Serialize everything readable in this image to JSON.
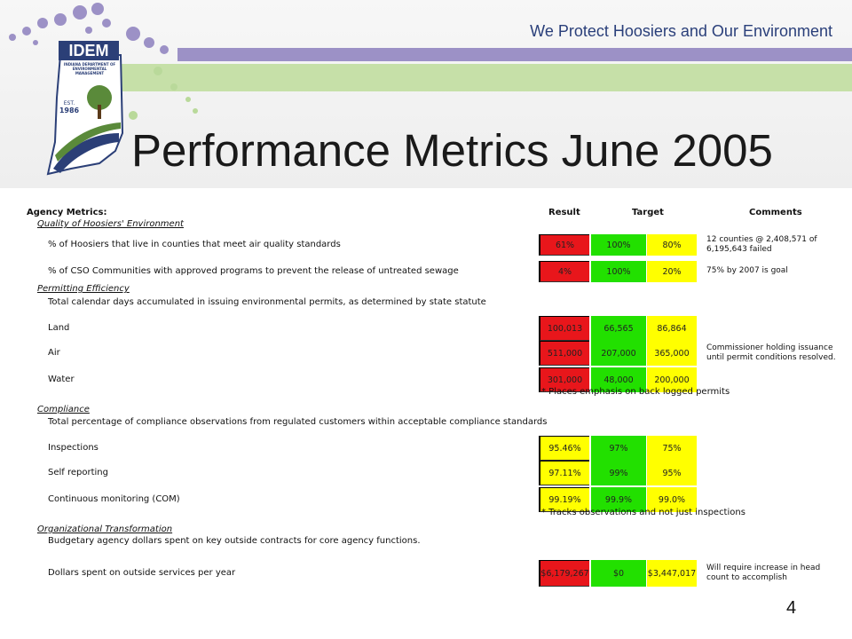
{
  "header": {
    "tagline": "We Protect Hoosiers and Our Environment",
    "logo": {
      "name": "IDEM",
      "agency": "INDIANA DEPARTMENT OF ENVIRONMENTAL MANAGEMENT",
      "est": "EST.",
      "year": "1986"
    },
    "title": "Performance Metrics June 2005"
  },
  "table": {
    "heading": "Agency Metrics:",
    "columns": {
      "result": "Result",
      "target": "Target",
      "comments": "Comments"
    },
    "colors": {
      "red": "#e8161b",
      "yellow": "#ffff00",
      "green": "#22e000"
    },
    "sections": [
      {
        "heading": "Quality of Hoosiers' Environment",
        "rows": [
          {
            "label": "% of Hoosiers that live in counties that meet air quality standards",
            "result": "61%",
            "result_color": "red",
            "target": "100%",
            "minimum": "80%",
            "comment": "12 counties @ 2,408,571 of 6,195,643 failed"
          },
          {
            "label": "% of CSO Communities with approved programs to prevent the release of untreated sewage",
            "result": "4%",
            "result_color": "red",
            "target": "100%",
            "minimum": "20%",
            "comment": "75% by 2007 is goal"
          }
        ]
      },
      {
        "heading": "Permitting Efficiency",
        "description": "Total calendar days accumulated in issuing environmental permits, as determined by state statute",
        "rows": [
          {
            "label": "Land",
            "result": "100,013",
            "result_color": "red",
            "target": "66,565",
            "minimum": "86,864"
          },
          {
            "label": "Air",
            "result": "511,000",
            "result_color": "red",
            "target": "207,000",
            "minimum": "365,000",
            "comment": "Commissioner holding issuance until permit conditions resolved."
          },
          {
            "label": "Water",
            "result": "301,000",
            "result_color": "red",
            "target": "48,000",
            "minimum": "200,000"
          }
        ],
        "note": "* Places emphasis on back logged permits"
      },
      {
        "heading": "Compliance",
        "description": "Total percentage of compliance observations from regulated customers within acceptable compliance standards",
        "rows": [
          {
            "label": "Inspections",
            "result": "95.46%",
            "result_color": "yellow",
            "target": "97%",
            "minimum": "75%"
          },
          {
            "label": "Self reporting",
            "result": "97.11%",
            "result_color": "yellow",
            "target": "99%",
            "minimum": "95%"
          },
          {
            "label": "Continuous monitoring (COM)",
            "result": "99.19%",
            "result_color": "yellow",
            "target": "99.9%",
            "minimum": "99.0%"
          }
        ],
        "note": "* Tracks observations and not just inspections"
      },
      {
        "heading": "Organizational Transformation",
        "description": "Budgetary agency dollars spent on key outside contracts for core agency functions.",
        "rows": [
          {
            "label": "Dollars spent on outside services per year",
            "result": "$6,179,267",
            "result_color": "red",
            "target": "$0",
            "minimum": "$3,447,017",
            "comment": "Will require increase in head count to accomplish"
          }
        ]
      }
    ]
  },
  "page_number": "4"
}
